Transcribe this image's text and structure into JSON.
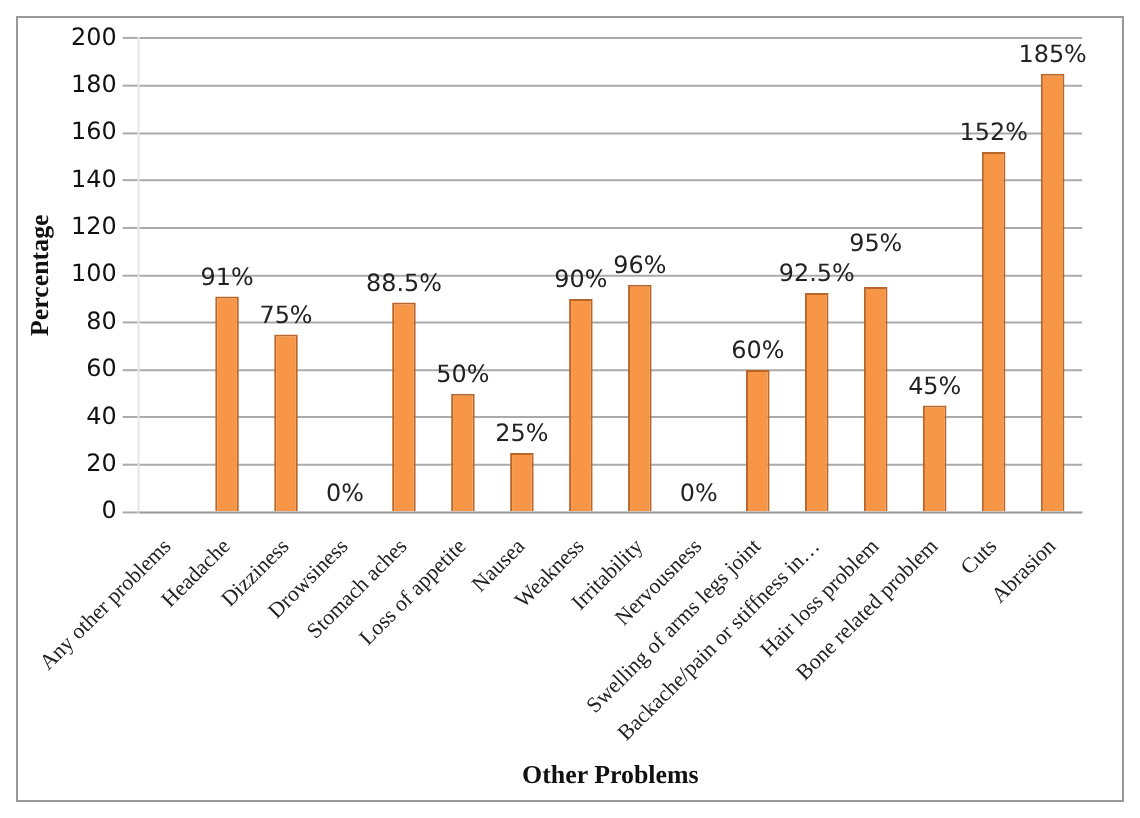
{
  "chart_data": {
    "type": "bar",
    "xlabel": "Other Problems",
    "ylabel": "Percentage",
    "categories": [
      "Any other problems",
      "Headache",
      "Dizziness",
      "Drowsiness",
      "Stomach aches",
      "Loss of appetite",
      "Nausea",
      "Weakness",
      "Irritability",
      "Nervousness",
      "Swelling of arms legs joint",
      "Backache/pain or stiffness in…",
      "Hair loss problem",
      "Bone related problem",
      "Cuts",
      "Abrasion"
    ],
    "values": [
      null,
      91,
      75,
      0,
      88.5,
      50,
      25,
      90,
      96,
      0,
      60,
      92.5,
      95,
      45,
      152,
      185
    ],
    "value_labels": [
      null,
      "91%",
      "75%",
      "0%",
      "88.5%",
      "50%",
      "25%",
      "90%",
      "96%",
      "0%",
      "60%",
      "92.5%",
      "95%",
      "45%",
      "152%",
      "185%"
    ],
    "color": "#f79646",
    "ylim": [
      0,
      200
    ],
    "yticks": [
      0,
      20,
      40,
      60,
      80,
      100,
      120,
      140,
      160,
      180,
      200
    ],
    "grid": "y",
    "legend": false
  }
}
